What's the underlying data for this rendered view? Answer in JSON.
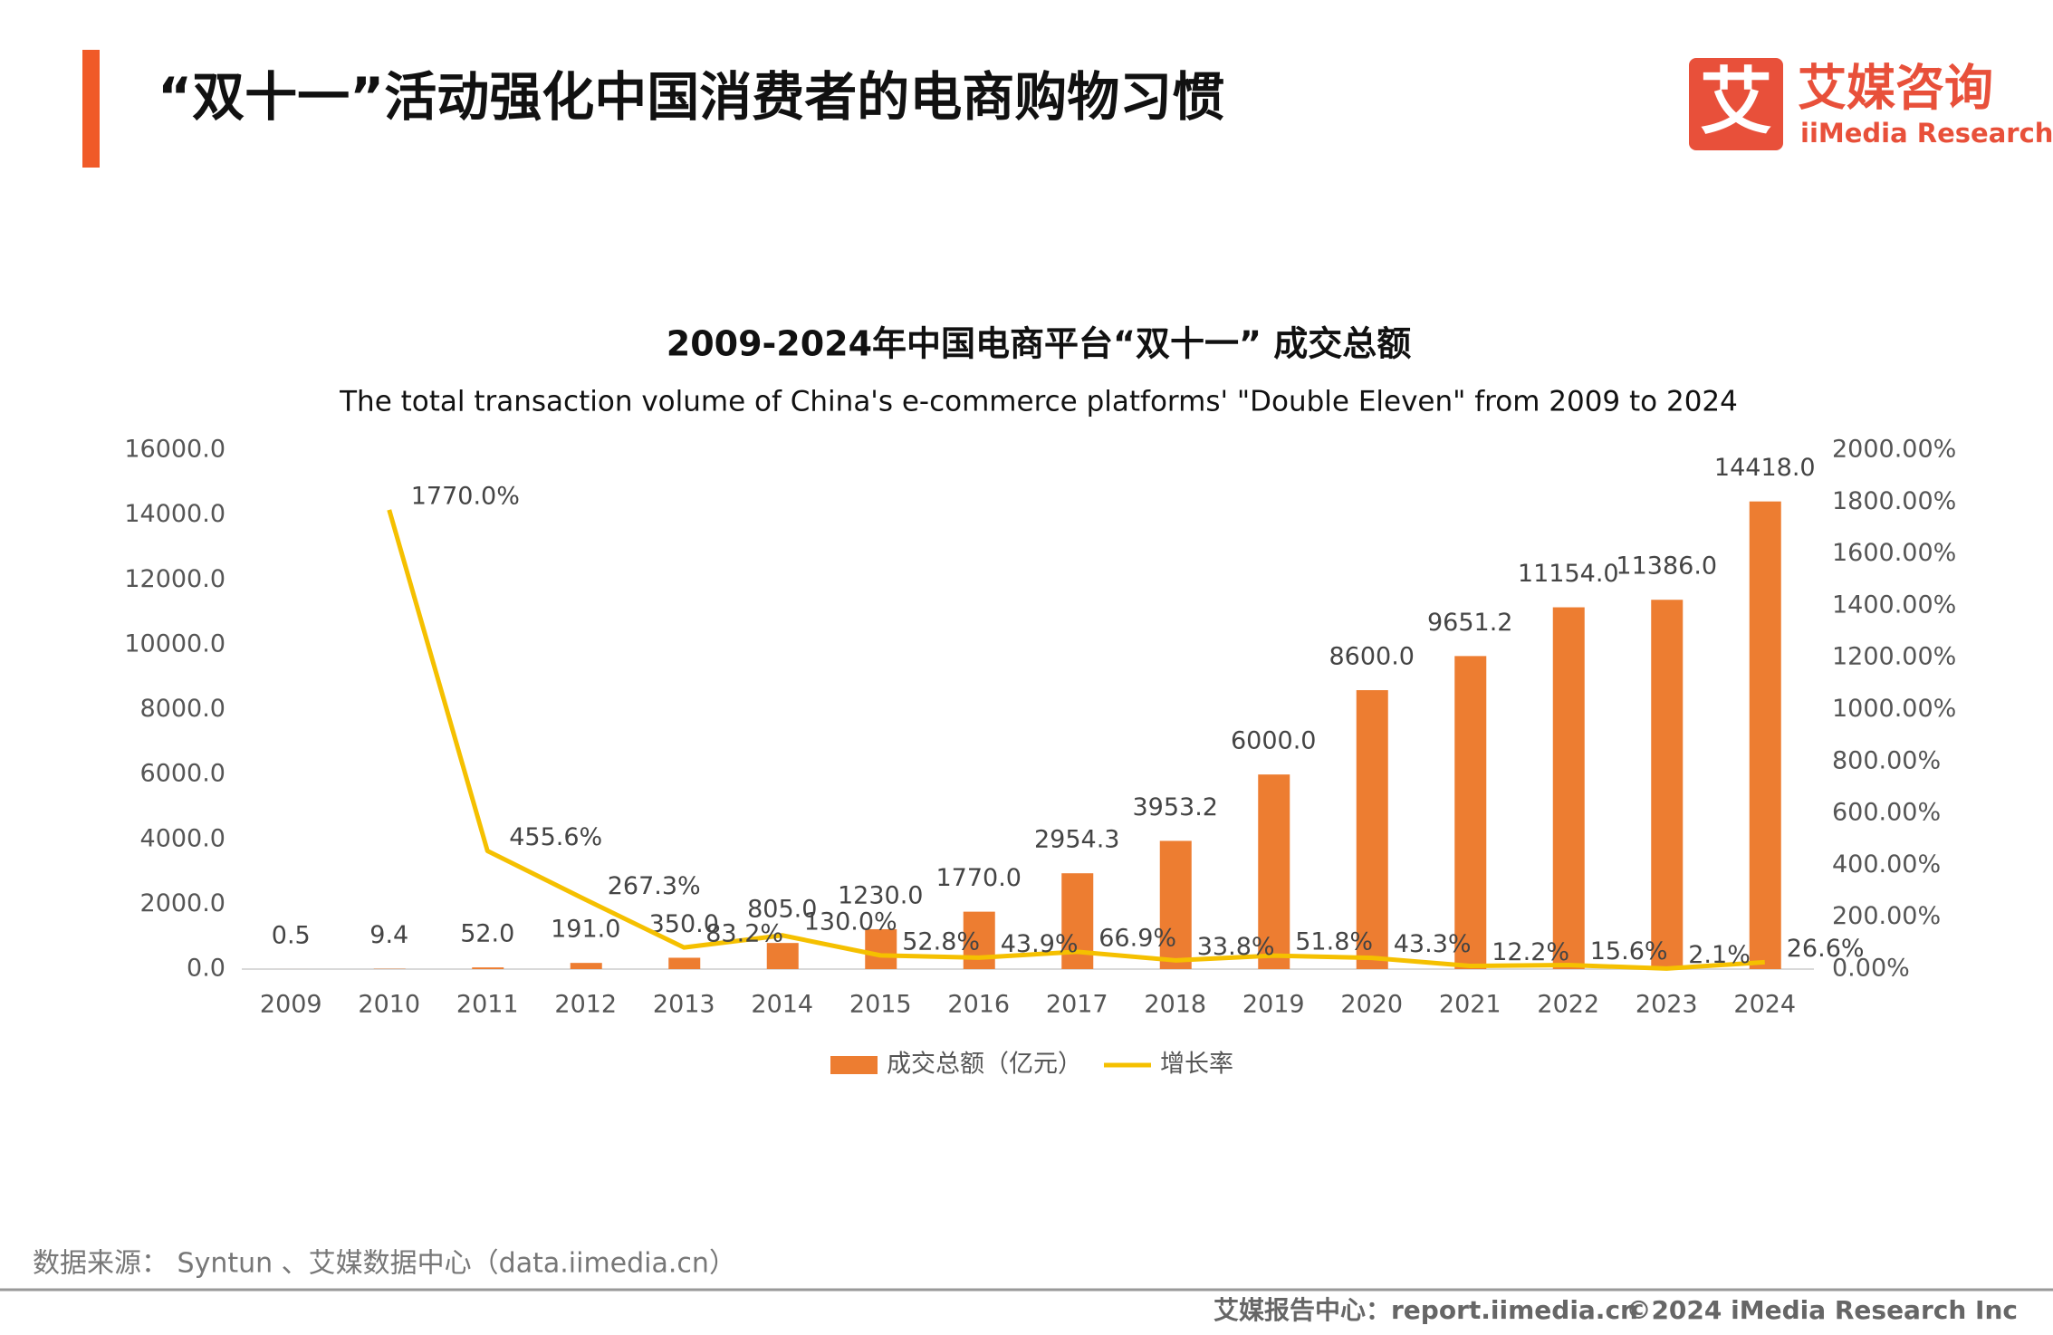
{
  "header": {
    "title": "“双十一”活动强化中国消费者的电商购物习惯",
    "logo_mark": "艾",
    "logo_cn": "艾媒咨询",
    "logo_en": "iiMedia Research"
  },
  "chart_data": {
    "type": "bar",
    "title": "2009-2024年中国电商平台“双十一” 成交总额",
    "subtitle": "The total transaction volume of China's e-commerce platforms' \"Double Eleven\" from 2009 to 2024",
    "categories": [
      "2009",
      "2010",
      "2011",
      "2012",
      "2013",
      "2014",
      "2015",
      "2016",
      "2017",
      "2018",
      "2019",
      "2020",
      "2021",
      "2022",
      "2023",
      "2024"
    ],
    "series": [
      {
        "name": "成交总额（亿元）",
        "type": "bar",
        "color": "#ED7D31",
        "values": [
          0.5,
          9.4,
          52.0,
          191.0,
          350.0,
          805.0,
          1230.0,
          1770.0,
          2954.3,
          3953.2,
          6000.0,
          8600.0,
          9651.2,
          11154.0,
          11386.0,
          14418.0
        ],
        "value_labels": [
          "0.5",
          "9.4",
          "52.0",
          "191.0",
          "350.0",
          "805.0",
          "1230.0",
          "1770.0",
          "2954.3",
          "3953.2",
          "6000.0",
          "8600.0",
          "9651.2",
          "11154.0",
          "11386.0",
          "14418.0"
        ]
      },
      {
        "name": "增长率",
        "type": "line",
        "axis": "y2",
        "color": "#F5C000",
        "values": [
          null,
          1770.0,
          455.6,
          267.3,
          83.2,
          130.0,
          52.8,
          43.9,
          66.9,
          33.8,
          51.8,
          43.3,
          12.2,
          15.6,
          2.1,
          26.6
        ],
        "value_labels": [
          null,
          "1770.0%",
          "455.6%",
          "267.3%",
          "83.2%",
          "130.0%",
          "52.8%",
          "43.9%",
          "66.9%",
          "33.8%",
          "51.8%",
          "43.3%",
          "12.2%",
          "15.6%",
          "2.1%",
          "26.6%"
        ]
      }
    ],
    "ylim": [
      0,
      16000
    ],
    "yticks": [
      {
        "value": 0,
        "label": "0.0"
      },
      {
        "value": 2000,
        "label": "2000.0"
      },
      {
        "value": 4000,
        "label": "4000.0"
      },
      {
        "value": 6000,
        "label": "6000.0"
      },
      {
        "value": 8000,
        "label": "8000.0"
      },
      {
        "value": 10000,
        "label": "10000.0"
      },
      {
        "value": 12000,
        "label": "12000.0"
      },
      {
        "value": 14000,
        "label": "14000.0"
      },
      {
        "value": 16000,
        "label": "16000.0"
      }
    ],
    "y2lim": [
      0,
      2000
    ],
    "y2ticks": [
      {
        "value": 0,
        "label": "0.00%"
      },
      {
        "value": 200,
        "label": "200.00%"
      },
      {
        "value": 400,
        "label": "400.00%"
      },
      {
        "value": 600,
        "label": "600.00%"
      },
      {
        "value": 800,
        "label": "800.00%"
      },
      {
        "value": 1000,
        "label": "1000.00%"
      },
      {
        "value": 1200,
        "label": "1200.00%"
      },
      {
        "value": 1400,
        "label": "1400.00%"
      },
      {
        "value": 1600,
        "label": "1600.00%"
      },
      {
        "value": 1800,
        "label": "1800.00%"
      },
      {
        "value": 2000,
        "label": "2000.00%"
      }
    ],
    "grid": false,
    "legend": "bottom"
  },
  "source": "数据来源： Syntun 、艾媒数据中心（data.iimedia.cn）",
  "footer": {
    "center": "艾媒报告中心：report.iimedia.cn",
    "copyright": "©2024  iMedia Research  Inc"
  }
}
